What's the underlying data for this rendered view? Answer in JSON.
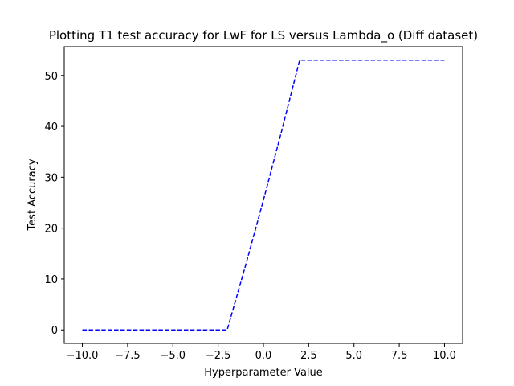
{
  "chart_data": {
    "type": "line",
    "title": "Plotting T1 test accuracy for LwF for LS versus Lambda_o (Diff dataset)",
    "xlabel": "Hyperparameter Value",
    "ylabel": "Test Accuracy",
    "xlim": [
      -11,
      11
    ],
    "ylim": [
      -2.65,
      55.65
    ],
    "xticks": [
      -10.0,
      -7.5,
      -5.0,
      -2.5,
      0.0,
      2.5,
      5.0,
      7.5,
      10.0
    ],
    "xtick_labels": [
      "−10.0",
      "−7.5",
      "−5.0",
      "−2.5",
      "0.0",
      "2.5",
      "5.0",
      "7.5",
      "10.0"
    ],
    "yticks": [
      0,
      10,
      20,
      30,
      40,
      50
    ],
    "ytick_labels": [
      "0",
      "10",
      "20",
      "30",
      "40",
      "50"
    ],
    "grid": false,
    "legend": false,
    "series": [
      {
        "line_style": "dashed",
        "color": "#0000ff",
        "x": [
          -10,
          -9,
          -8,
          -7,
          -6,
          -5,
          -4,
          -3,
          -2,
          -1,
          0,
          1,
          2,
          3,
          4,
          5,
          6,
          7,
          8,
          9,
          10
        ],
        "y": [
          0,
          0,
          0,
          0,
          0,
          0,
          0,
          0,
          0,
          12.5,
          25.5,
          39,
          53,
          53,
          53,
          53,
          53,
          53,
          53,
          53,
          53
        ]
      }
    ]
  }
}
